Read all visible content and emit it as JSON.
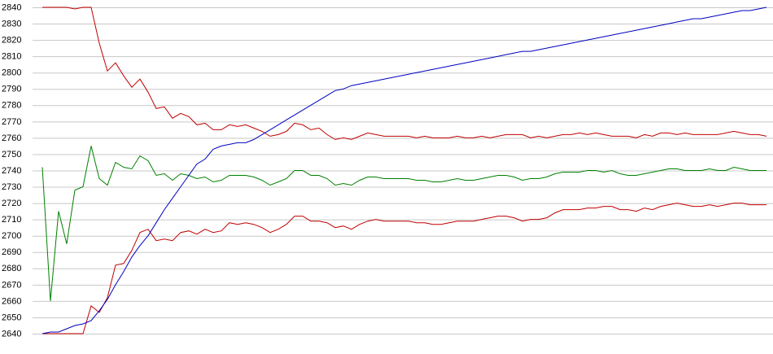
{
  "chart_data": {
    "type": "line",
    "categories": [
      null,
      null,
      null,
      null,
      null,
      null,
      null,
      null,
      null,
      null,
      null,
      null,
      null,
      null,
      null,
      null,
      null,
      null,
      null,
      null,
      null,
      null,
      null,
      null,
      null,
      null,
      null,
      null,
      null,
      null,
      null,
      null,
      null,
      null,
      null,
      null,
      null,
      null,
      null,
      null,
      null,
      null,
      null,
      null,
      null,
      null,
      null,
      null,
      null,
      null,
      null,
      null,
      null,
      null,
      null,
      null,
      null,
      null,
      null,
      null,
      null,
      null,
      null,
      null,
      null,
      null,
      null,
      null,
      null,
      null,
      null,
      null,
      null,
      null,
      null,
      null,
      null,
      null,
      null,
      null,
      null,
      null,
      null,
      null,
      null,
      null,
      null,
      null,
      null,
      null
    ],
    "series": [
      {
        "color": "#c00000",
        "values": [
          2840,
          2840,
          2840,
          2840,
          2839,
          2840,
          2840,
          2818,
          2801,
          2806,
          2798,
          2791,
          2796,
          2788,
          2778,
          2779,
          2772,
          2775,
          2773,
          2768,
          2769,
          2765,
          2765,
          2768,
          2767,
          2768,
          2766,
          2764,
          2761,
          2762,
          2764,
          2769,
          2768,
          2765,
          2766,
          2762,
          2759,
          2760,
          2759,
          2761,
          2763,
          2762,
          2761,
          2761,
          2761,
          2761,
          2760,
          2761,
          2760,
          2760,
          2760,
          2761,
          2760,
          2760,
          2761,
          2760,
          2761,
          2762,
          2762,
          2762,
          2760,
          2761,
          2760,
          2761,
          2762,
          2762,
          2763,
          2762,
          2763,
          2762,
          2761,
          2761,
          2761,
          2760,
          2762,
          2761,
          2763,
          2763,
          2762,
          2763,
          2762,
          2762,
          2762,
          2762,
          2763,
          2764,
          2763,
          2762,
          2762,
          2761
        ]
      },
      {
        "color": "#008000",
        "values": [
          2742,
          2660,
          2715,
          2695,
          2728,
          2730,
          2755,
          2735,
          2731,
          2745,
          2742,
          2741,
          2749,
          2746,
          2737,
          2738,
          2734,
          2738,
          2737,
          2735,
          2736,
          2733,
          2734,
          2737,
          2737,
          2737,
          2736,
          2734,
          2731,
          2733,
          2735,
          2740,
          2740,
          2737,
          2737,
          2735,
          2731,
          2732,
          2731,
          2734,
          2736,
          2736,
          2735,
          2735,
          2735,
          2735,
          2734,
          2734,
          2733,
          2733,
          2734,
          2735,
          2734,
          2734,
          2735,
          2736,
          2737,
          2737,
          2736,
          2734,
          2735,
          2735,
          2736,
          2738,
          2739,
          2739,
          2739,
          2740,
          2740,
          2739,
          2740,
          2738,
          2737,
          2737,
          2738,
          2739,
          2740,
          2741,
          2741,
          2740,
          2740,
          2740,
          2741,
          2740,
          2740,
          2742,
          2741,
          2740,
          2740,
          2740
        ]
      },
      {
        "color": "#c00000",
        "values": [
          2640,
          2640,
          2640,
          2640,
          2640,
          2640,
          2657,
          2653,
          2662,
          2682,
          2683,
          2691,
          2702,
          2704,
          2697,
          2698,
          2697,
          2702,
          2703,
          2701,
          2704,
          2702,
          2703,
          2708,
          2707,
          2708,
          2707,
          2705,
          2702,
          2704,
          2707,
          2712,
          2712,
          2709,
          2709,
          2708,
          2705,
          2706,
          2704,
          2707,
          2709,
          2710,
          2709,
          2709,
          2709,
          2709,
          2708,
          2708,
          2707,
          2707,
          2708,
          2709,
          2709,
          2709,
          2710,
          2711,
          2712,
          2712,
          2711,
          2709,
          2710,
          2710,
          2711,
          2714,
          2716,
          2716,
          2716,
          2717,
          2717,
          2718,
          2718,
          2716,
          2716,
          2715,
          2717,
          2716,
          2718,
          2719,
          2720,
          2719,
          2718,
          2718,
          2719,
          2718,
          2719,
          2720,
          2720,
          2719,
          2719,
          2719
        ]
      },
      {
        "color": "#0000c0",
        "values": [
          2640,
          2641,
          2641,
          2643,
          2645,
          2646,
          2648,
          2654,
          2661,
          2670,
          2678,
          2687,
          2694,
          2700,
          2708,
          2716,
          2723,
          2730,
          2737,
          2744,
          2747,
          2753,
          2755,
          2756,
          2757,
          2757,
          2759,
          2762,
          2765,
          2768,
          2771,
          2774,
          2777,
          2780,
          2783,
          2786,
          2789,
          2790,
          2792,
          2793,
          2794,
          2795,
          2796,
          2797,
          2798,
          2799,
          2800,
          2801,
          2802,
          2803,
          2804,
          2805,
          2806,
          2807,
          2808,
          2809,
          2810,
          2811,
          2812,
          2813,
          2813,
          2814,
          2815,
          2816,
          2817,
          2818,
          2819,
          2820,
          2821,
          2822,
          2823,
          2824,
          2825,
          2826,
          2827,
          2828,
          2829,
          2830,
          2831,
          2832,
          2833,
          2833,
          2834,
          2835,
          2836,
          2837,
          2838,
          2838,
          2839,
          2840
        ]
      }
    ],
    "ylim": [
      2640,
      2840
    ],
    "yticks": [
      2640,
      2650,
      2660,
      2670,
      2680,
      2690,
      2700,
      2710,
      2720,
      2730,
      2740,
      2750,
      2760,
      2770,
      2780,
      2790,
      2800,
      2810,
      2820,
      2830,
      2840
    ],
    "grid": true
  }
}
